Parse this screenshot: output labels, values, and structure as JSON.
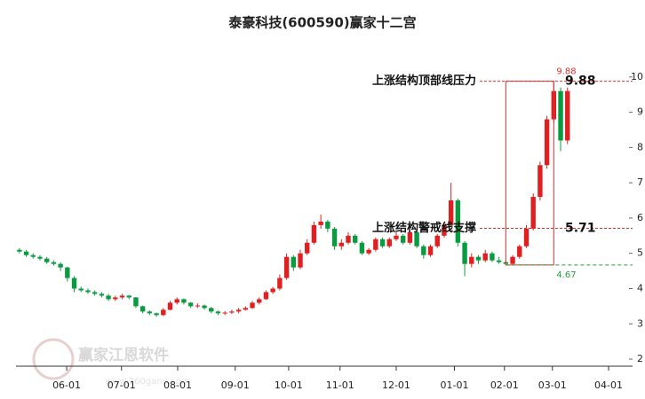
{
  "chart_data": {
    "type": "candlestick",
    "title": "泰豪科技(600590)赢家十二宫",
    "watermark": [
      "赢家江恩软件",
      "www.360gann.com"
    ],
    "up_color": "#e02020",
    "down_color": "#0a9a40",
    "xlim": [
      0,
      90
    ],
    "xticks": [
      {
        "value": 7.4,
        "label": "06-01"
      },
      {
        "value": 15.4,
        "label": "07-01"
      },
      {
        "value": 23.6,
        "label": "08-01"
      },
      {
        "value": 32,
        "label": "09-01"
      },
      {
        "value": 39.8,
        "label": "10-01"
      },
      {
        "value": 47.3,
        "label": "11-01"
      },
      {
        "value": 55.5,
        "label": "12-01"
      },
      {
        "value": 64,
        "label": "01-01"
      },
      {
        "value": 71.3,
        "label": "02-01"
      },
      {
        "value": 78.3,
        "label": "03-01"
      },
      {
        "value": 86.5,
        "label": "04-01"
      }
    ],
    "ylim": [
      1.8,
      10.8
    ],
    "yticks": [
      2,
      3,
      4,
      5,
      6,
      7,
      8,
      9,
      10
    ],
    "ohlc": [
      [
        5.1,
        5.15,
        5.0,
        5.05
      ],
      [
        5.05,
        5.1,
        4.9,
        4.95
      ],
      [
        4.95,
        5.0,
        4.85,
        4.9
      ],
      [
        4.9,
        4.95,
        4.8,
        4.85
      ],
      [
        4.85,
        4.9,
        4.7,
        4.75
      ],
      [
        4.75,
        4.8,
        4.65,
        4.7
      ],
      [
        4.7,
        4.75,
        4.5,
        4.6
      ],
      [
        4.6,
        4.62,
        4.2,
        4.3
      ],
      [
        4.3,
        4.35,
        3.9,
        4.0
      ],
      [
        4.0,
        4.05,
        3.9,
        3.95
      ],
      [
        3.95,
        4.0,
        3.85,
        3.9
      ],
      [
        3.9,
        3.95,
        3.8,
        3.85
      ],
      [
        3.85,
        3.9,
        3.75,
        3.8
      ],
      [
        3.8,
        3.85,
        3.65,
        3.7
      ],
      [
        3.7,
        3.8,
        3.65,
        3.75
      ],
      [
        3.75,
        3.85,
        3.7,
        3.8
      ],
      [
        3.8,
        3.82,
        3.7,
        3.75
      ],
      [
        3.75,
        3.76,
        3.45,
        3.5
      ],
      [
        3.5,
        3.52,
        3.3,
        3.35
      ],
      [
        3.35,
        3.38,
        3.25,
        3.3
      ],
      [
        3.3,
        3.32,
        3.2,
        3.25
      ],
      [
        3.25,
        3.45,
        3.22,
        3.4
      ],
      [
        3.4,
        3.65,
        3.38,
        3.6
      ],
      [
        3.6,
        3.75,
        3.55,
        3.7
      ],
      [
        3.7,
        3.72,
        3.55,
        3.6
      ],
      [
        3.6,
        3.62,
        3.45,
        3.5
      ],
      [
        3.5,
        3.58,
        3.45,
        3.52
      ],
      [
        3.52,
        3.55,
        3.4,
        3.45
      ],
      [
        3.45,
        3.48,
        3.3,
        3.35
      ],
      [
        3.35,
        3.38,
        3.25,
        3.3
      ],
      [
        3.3,
        3.36,
        3.25,
        3.32
      ],
      [
        3.32,
        3.4,
        3.28,
        3.35
      ],
      [
        3.35,
        3.45,
        3.3,
        3.4
      ],
      [
        3.4,
        3.5,
        3.38,
        3.45
      ],
      [
        3.45,
        3.65,
        3.42,
        3.6
      ],
      [
        3.6,
        3.75,
        3.55,
        3.7
      ],
      [
        3.7,
        3.95,
        3.68,
        3.9
      ],
      [
        3.9,
        4.05,
        3.85,
        4.0
      ],
      [
        4.0,
        4.4,
        3.95,
        4.3
      ],
      [
        4.3,
        5.0,
        4.25,
        4.9
      ],
      [
        4.9,
        4.95,
        4.5,
        4.6
      ],
      [
        4.6,
        5.1,
        4.55,
        5.0
      ],
      [
        5.0,
        5.4,
        4.95,
        5.3
      ],
      [
        5.3,
        5.9,
        5.25,
        5.8
      ],
      [
        5.8,
        6.1,
        5.7,
        5.9
      ],
      [
        5.9,
        5.95,
        5.6,
        5.7
      ],
      [
        5.7,
        5.75,
        5.1,
        5.2
      ],
      [
        5.2,
        5.4,
        5.1,
        5.3
      ],
      [
        5.3,
        5.6,
        5.25,
        5.5
      ],
      [
        5.5,
        5.55,
        5.25,
        5.3
      ],
      [
        5.3,
        5.35,
        4.95,
        5.0
      ],
      [
        5.0,
        5.15,
        4.95,
        5.1
      ],
      [
        5.1,
        5.45,
        5.05,
        5.4
      ],
      [
        5.4,
        5.45,
        5.15,
        5.2
      ],
      [
        5.2,
        5.45,
        5.15,
        5.4
      ],
      [
        5.4,
        5.6,
        5.35,
        5.5
      ],
      [
        5.5,
        5.55,
        5.25,
        5.3
      ],
      [
        5.3,
        5.65,
        5.25,
        5.6
      ],
      [
        5.6,
        5.65,
        5.15,
        5.2
      ],
      [
        5.2,
        5.25,
        4.85,
        4.95
      ],
      [
        4.95,
        5.25,
        4.9,
        5.2
      ],
      [
        5.2,
        5.55,
        5.15,
        5.5
      ],
      [
        5.5,
        5.85,
        5.45,
        5.8
      ],
      [
        5.8,
        7.0,
        5.75,
        6.5
      ],
      [
        6.5,
        6.55,
        5.2,
        5.3
      ],
      [
        5.3,
        5.35,
        4.35,
        4.7
      ],
      [
        4.7,
        5.0,
        4.6,
        4.9
      ],
      [
        4.9,
        4.95,
        4.7,
        4.8
      ],
      [
        4.8,
        5.1,
        4.75,
        5.0
      ],
      [
        5.0,
        5.05,
        4.75,
        4.8
      ],
      [
        4.8,
        4.9,
        4.7,
        4.75
      ],
      [
        4.75,
        4.8,
        4.67,
        4.7
      ],
      [
        4.7,
        4.95,
        4.68,
        4.9
      ],
      [
        4.9,
        5.25,
        4.85,
        5.2
      ],
      [
        5.2,
        5.8,
        5.15,
        5.7
      ],
      [
        5.7,
        6.7,
        5.65,
        6.6
      ],
      [
        6.6,
        7.6,
        6.5,
        7.5
      ],
      [
        7.5,
        8.9,
        7.4,
        8.8
      ],
      [
        8.8,
        9.88,
        8.7,
        9.6
      ],
      [
        9.6,
        9.7,
        7.9,
        8.2
      ],
      [
        8.2,
        9.7,
        8.1,
        9.6
      ]
    ],
    "resistance": {
      "label": "上涨结构顶部线压力",
      "value": 9.88
    },
    "support": {
      "label": "上涨结构警戒线支撑",
      "value": 5.71
    },
    "low": {
      "value": 4.67
    }
  }
}
